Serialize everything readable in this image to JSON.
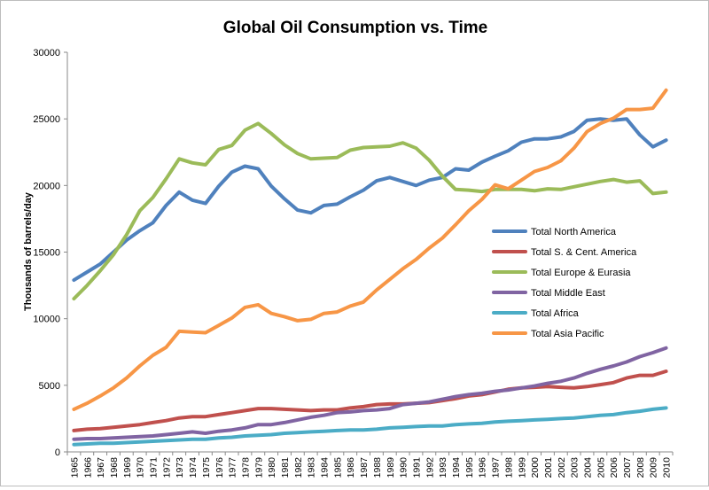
{
  "chart_data": {
    "type": "line",
    "title": "Global Oil Consumption vs. Time",
    "xlabel": "",
    "ylabel": "Thousands of barrels/day",
    "ylim": [
      0,
      30000
    ],
    "yticks": [
      0,
      5000,
      10000,
      15000,
      20000,
      25000,
      30000
    ],
    "grid": false,
    "legend_position": "right",
    "categories": [
      "1965",
      "1966",
      "1967",
      "1968",
      "1969",
      "1970",
      "1971",
      "1972",
      "1973",
      "1974",
      "1975",
      "1976",
      "1977",
      "1978",
      "1979",
      "1980",
      "1981",
      "1982",
      "1983",
      "1984",
      "1985",
      "1986",
      "1987",
      "1988",
      "1989",
      "1990",
      "1991",
      "1992",
      "1993",
      "1994",
      "1995",
      "1996",
      "1997",
      "1998",
      "1999",
      "2000",
      "2001",
      "2002",
      "2003",
      "2004",
      "2005",
      "2006",
      "2007",
      "2008",
      "2009",
      "2010"
    ],
    "series": [
      {
        "name": "Total North America",
        "color": "#4f81bd",
        "values": [
          12900,
          13500,
          14100,
          15000,
          15900,
          16600,
          17200,
          18500,
          19500,
          18900,
          18650,
          19950,
          21000,
          21450,
          21250,
          19950,
          19000,
          18150,
          17950,
          18500,
          18600,
          19150,
          19650,
          20350,
          20600,
          20300,
          20000,
          20400,
          20600,
          21250,
          21150,
          21750,
          22200,
          22600,
          23250,
          23500,
          23500,
          23650,
          24050,
          24900,
          25000,
          24900,
          25000,
          23800,
          22900,
          23400
        ]
      },
      {
        "name": "Total S. & Cent. America",
        "color": "#c0504d",
        "values": [
          1600,
          1700,
          1750,
          1850,
          1950,
          2050,
          2200,
          2350,
          2550,
          2650,
          2650,
          2800,
          2950,
          3100,
          3250,
          3250,
          3200,
          3150,
          3100,
          3150,
          3150,
          3300,
          3400,
          3550,
          3600,
          3600,
          3650,
          3700,
          3850,
          4000,
          4200,
          4300,
          4500,
          4700,
          4800,
          4850,
          4900,
          4850,
          4800,
          4900,
          5050,
          5200,
          5550,
          5750,
          5750,
          6050
        ]
      },
      {
        "name": "Total Europe & Eurasia",
        "color": "#9bbb59",
        "values": [
          11500,
          12500,
          13600,
          14800,
          16300,
          18100,
          19100,
          20500,
          22000,
          21700,
          21550,
          22700,
          23000,
          24150,
          24650,
          23900,
          23050,
          22400,
          22000,
          22050,
          22100,
          22650,
          22850,
          22900,
          22950,
          23200,
          22800,
          21900,
          20700,
          19700,
          19650,
          19550,
          19700,
          19700,
          19700,
          19600,
          19750,
          19700,
          19900,
          20100,
          20300,
          20450,
          20250,
          20350,
          19400,
          19500
        ]
      },
      {
        "name": "Total Middle East",
        "color": "#8064a2",
        "values": [
          950,
          1000,
          1000,
          1050,
          1100,
          1150,
          1200,
          1300,
          1400,
          1500,
          1400,
          1550,
          1650,
          1800,
          2050,
          2050,
          2200,
          2400,
          2600,
          2750,
          2950,
          3000,
          3100,
          3150,
          3250,
          3550,
          3650,
          3750,
          3950,
          4150,
          4300,
          4400,
          4550,
          4650,
          4800,
          4950,
          5150,
          5300,
          5550,
          5900,
          6200,
          6450,
          6750,
          7150,
          7450,
          7800
        ]
      },
      {
        "name": "Total Africa",
        "color": "#4bacc6",
        "values": [
          550,
          600,
          650,
          650,
          700,
          750,
          800,
          850,
          900,
          950,
          950,
          1050,
          1100,
          1200,
          1250,
          1300,
          1400,
          1450,
          1500,
          1550,
          1600,
          1650,
          1650,
          1700,
          1800,
          1850,
          1900,
          1950,
          1950,
          2050,
          2100,
          2150,
          2250,
          2300,
          2350,
          2400,
          2450,
          2500,
          2550,
          2650,
          2750,
          2800,
          2950,
          3050,
          3200,
          3300
        ]
      },
      {
        "name": "Total Asia Pacific",
        "color": "#f79646",
        "values": [
          3200,
          3650,
          4200,
          4800,
          5550,
          6450,
          7250,
          7850,
          9050,
          9000,
          8950,
          9500,
          10050,
          10850,
          11050,
          10400,
          10150,
          9850,
          9950,
          10400,
          10500,
          10950,
          11250,
          12150,
          12950,
          13750,
          14450,
          15300,
          16050,
          17050,
          18100,
          18950,
          20050,
          19750,
          20400,
          21050,
          21350,
          21850,
          22800,
          24050,
          24650,
          25050,
          25700,
          25700,
          25800,
          27150
        ]
      }
    ]
  }
}
